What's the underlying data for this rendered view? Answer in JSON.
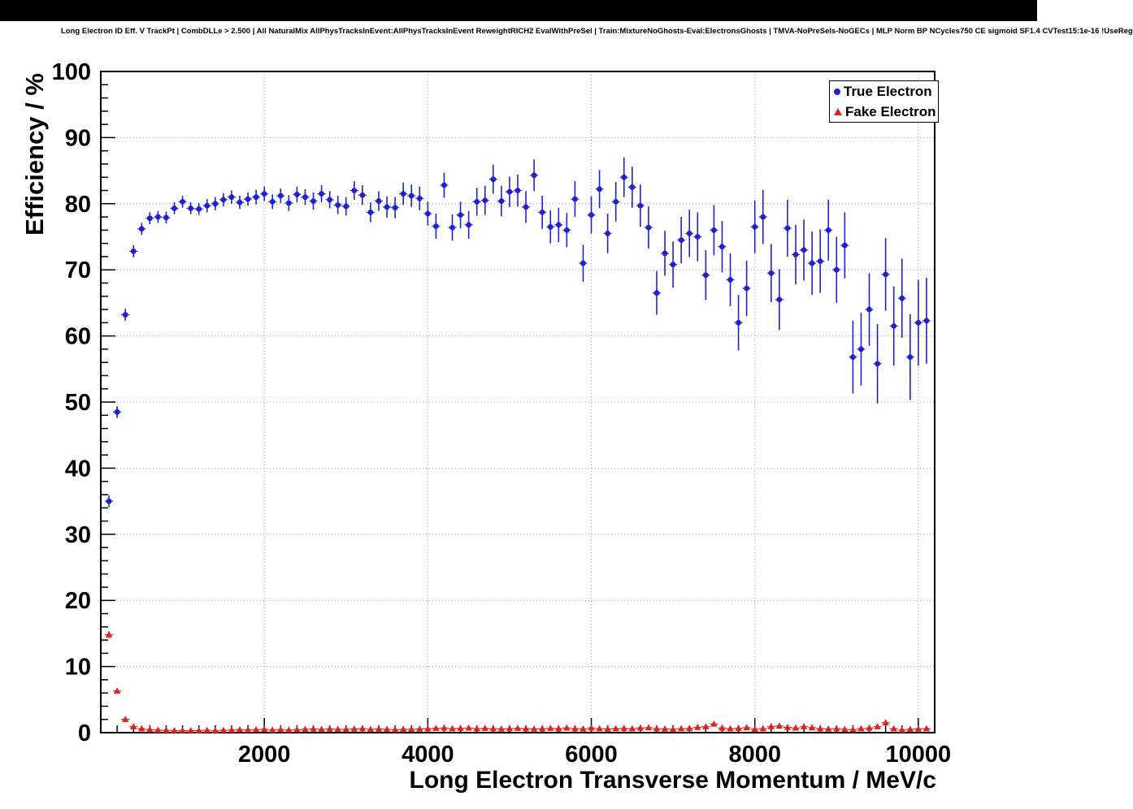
{
  "header": {
    "title": "Long Electron ID Eff. V TrackPt | CombDLLe > 2.500 | All NaturalMix AllPhysTracksInEvent:AllPhysTracksInEvent ReweightRICH2 EvalWithPreSel | Train:MixtureNoGhosts-Eval:ElectronsGhosts | TMVA-NoPreSels-NoGECs | MLP Norm BP NCycles750 CE sigmoid SF1.4 CVTest15:1e-16 !UseReg"
  },
  "chart_data": {
    "type": "scatter",
    "title": "",
    "xlabel": "Long Electron Transverse Momentum / MeV/c",
    "ylabel": "Efficiency / %",
    "xlim": [
      0,
      10200
    ],
    "ylim": [
      0,
      100
    ],
    "grid": "dotted",
    "legend_position": "top-right",
    "x_tick_values": [
      2000,
      4000,
      6000,
      8000,
      10000
    ],
    "x_tick_labels": [
      "2000",
      "4000",
      "6000",
      "8000",
      "10000"
    ],
    "y_tick_values": [
      0,
      10,
      20,
      30,
      40,
      50,
      60,
      70,
      80,
      90,
      100
    ],
    "y_tick_labels": [
      "0",
      "10",
      "20",
      "30",
      "40",
      "50",
      "60",
      "70",
      "80",
      "90",
      "100"
    ],
    "x_minor_step": 200,
    "y_minor_step": 2,
    "x_bin_half_width": 50,
    "series": [
      {
        "name": "True Electron",
        "color": "#2020cc",
        "marker": "circle",
        "points": [
          [
            100,
            35.0,
            0.9
          ],
          [
            200,
            48.5,
            0.9
          ],
          [
            300,
            63.2,
            0.9
          ],
          [
            400,
            72.8,
            0.9
          ],
          [
            500,
            76.2,
            0.9
          ],
          [
            600,
            77.8,
            0.9
          ],
          [
            700,
            78.0,
            0.9
          ],
          [
            800,
            77.9,
            0.9
          ],
          [
            900,
            79.3,
            0.9
          ],
          [
            1000,
            80.3,
            0.9
          ],
          [
            1100,
            79.3,
            0.9
          ],
          [
            1200,
            79.2,
            0.9
          ],
          [
            1300,
            79.7,
            1.0
          ],
          [
            1400,
            80.0,
            1.0
          ],
          [
            1500,
            80.6,
            1.0
          ],
          [
            1600,
            81.0,
            1.0
          ],
          [
            1700,
            80.2,
            1.0
          ],
          [
            1800,
            80.7,
            1.0
          ],
          [
            1900,
            81.0,
            1.1
          ],
          [
            2000,
            81.5,
            1.1
          ],
          [
            2100,
            80.3,
            1.1
          ],
          [
            2200,
            81.2,
            1.1
          ],
          [
            2300,
            80.1,
            1.2
          ],
          [
            2400,
            81.4,
            1.2
          ],
          [
            2500,
            81.0,
            1.2
          ],
          [
            2600,
            80.4,
            1.3
          ],
          [
            2700,
            81.5,
            1.3
          ],
          [
            2800,
            80.6,
            1.3
          ],
          [
            2900,
            79.8,
            1.4
          ],
          [
            3000,
            79.6,
            1.4
          ],
          [
            3100,
            82.0,
            1.4
          ],
          [
            3200,
            81.3,
            1.5
          ],
          [
            3300,
            78.7,
            1.5
          ],
          [
            3400,
            80.4,
            1.5
          ],
          [
            3500,
            79.5,
            1.6
          ],
          [
            3600,
            79.4,
            1.6
          ],
          [
            3700,
            81.5,
            1.7
          ],
          [
            3800,
            81.2,
            1.7
          ],
          [
            3900,
            80.8,
            1.8
          ],
          [
            4000,
            78.5,
            1.8
          ],
          [
            4100,
            76.6,
            1.9
          ],
          [
            4200,
            82.8,
            1.9
          ],
          [
            4300,
            76.4,
            2.0
          ],
          [
            4400,
            78.3,
            2.0
          ],
          [
            4500,
            76.8,
            2.1
          ],
          [
            4600,
            80.3,
            2.1
          ],
          [
            4700,
            80.5,
            2.2
          ],
          [
            4800,
            83.7,
            2.2
          ],
          [
            4900,
            80.4,
            2.3
          ],
          [
            5000,
            81.8,
            2.3
          ],
          [
            5100,
            82.0,
            2.4
          ],
          [
            5200,
            79.5,
            2.4
          ],
          [
            5300,
            84.3,
            2.4
          ],
          [
            5400,
            78.7,
            2.5
          ],
          [
            5500,
            76.5,
            2.5
          ],
          [
            5600,
            76.8,
            2.6
          ],
          [
            5700,
            76.0,
            2.6
          ],
          [
            5800,
            80.7,
            2.7
          ],
          [
            5900,
            71.0,
            2.8
          ],
          [
            6000,
            78.3,
            2.8
          ],
          [
            6100,
            82.2,
            2.9
          ],
          [
            6200,
            75.5,
            3.0
          ],
          [
            6300,
            80.3,
            3.0
          ],
          [
            6400,
            84.0,
            3.0
          ],
          [
            6500,
            82.5,
            3.1
          ],
          [
            6600,
            79.7,
            3.2
          ],
          [
            6700,
            76.4,
            3.2
          ],
          [
            6800,
            66.5,
            3.3
          ],
          [
            6900,
            72.5,
            3.4
          ],
          [
            7000,
            70.8,
            3.5
          ],
          [
            7100,
            74.5,
            3.5
          ],
          [
            7200,
            75.5,
            3.6
          ],
          [
            7300,
            75.0,
            3.7
          ],
          [
            7400,
            69.2,
            3.8
          ],
          [
            7500,
            76.0,
            3.8
          ],
          [
            7600,
            73.5,
            3.9
          ],
          [
            7700,
            68.5,
            4.0
          ],
          [
            7800,
            62.0,
            4.2
          ],
          [
            7900,
            67.2,
            4.2
          ],
          [
            8000,
            76.5,
            4.0
          ],
          [
            8100,
            78.0,
            4.1
          ],
          [
            8200,
            69.5,
            4.4
          ],
          [
            8300,
            65.5,
            4.6
          ],
          [
            8400,
            76.3,
            4.3
          ],
          [
            8500,
            72.3,
            4.5
          ],
          [
            8600,
            73.0,
            4.6
          ],
          [
            8700,
            71.0,
            4.8
          ],
          [
            8800,
            71.3,
            4.8
          ],
          [
            8900,
            76.0,
            4.6
          ],
          [
            9000,
            70.0,
            5.0
          ],
          [
            9100,
            73.7,
            5.0
          ],
          [
            9200,
            56.8,
            5.5
          ],
          [
            9300,
            58.0,
            5.5
          ],
          [
            9400,
            64.0,
            5.5
          ],
          [
            9500,
            55.8,
            6.0
          ],
          [
            9600,
            69.3,
            5.5
          ],
          [
            9700,
            61.5,
            6.0
          ],
          [
            9800,
            65.7,
            6.0
          ],
          [
            9900,
            56.8,
            6.5
          ],
          [
            10000,
            62.0,
            6.5
          ],
          [
            10100,
            62.3,
            6.5
          ]
        ]
      },
      {
        "name": "Fake Electron",
        "color": "#dd2222",
        "marker": "triangle-up",
        "points": [
          [
            100,
            14.8,
            0.5
          ],
          [
            200,
            6.3,
            0.4
          ],
          [
            300,
            2.0,
            0.3
          ],
          [
            400,
            0.9,
            0.25
          ],
          [
            500,
            0.6,
            0.2
          ],
          [
            600,
            0.45,
            0.2
          ],
          [
            700,
            0.4,
            0.2
          ],
          [
            800,
            0.35,
            0.2
          ],
          [
            900,
            0.3,
            0.2
          ],
          [
            1000,
            0.3,
            0.2
          ],
          [
            1100,
            0.3,
            0.2
          ],
          [
            1200,
            0.3,
            0.2
          ],
          [
            1300,
            0.35,
            0.2
          ],
          [
            1400,
            0.3,
            0.2
          ],
          [
            1500,
            0.35,
            0.2
          ],
          [
            1600,
            0.4,
            0.2
          ],
          [
            1700,
            0.45,
            0.2
          ],
          [
            1800,
            0.4,
            0.2
          ],
          [
            1900,
            0.45,
            0.2
          ],
          [
            2000,
            0.5,
            0.2
          ],
          [
            2100,
            0.4,
            0.2
          ],
          [
            2200,
            0.45,
            0.2
          ],
          [
            2300,
            0.4,
            0.2
          ],
          [
            2400,
            0.45,
            0.2
          ],
          [
            2500,
            0.5,
            0.2
          ],
          [
            2600,
            0.55,
            0.2
          ],
          [
            2700,
            0.5,
            0.2
          ],
          [
            2800,
            0.55,
            0.2
          ],
          [
            2900,
            0.5,
            0.2
          ],
          [
            3000,
            0.5,
            0.2
          ],
          [
            3100,
            0.55,
            0.2
          ],
          [
            3200,
            0.6,
            0.2
          ],
          [
            3300,
            0.5,
            0.2
          ],
          [
            3400,
            0.55,
            0.2
          ],
          [
            3500,
            0.5,
            0.2
          ],
          [
            3600,
            0.45,
            0.2
          ],
          [
            3700,
            0.5,
            0.2
          ],
          [
            3800,
            0.5,
            0.2
          ],
          [
            3900,
            0.55,
            0.2
          ],
          [
            4000,
            0.6,
            0.2
          ],
          [
            4100,
            0.65,
            0.2
          ],
          [
            4200,
            0.7,
            0.2
          ],
          [
            4300,
            0.6,
            0.2
          ],
          [
            4400,
            0.65,
            0.2
          ],
          [
            4500,
            0.7,
            0.2
          ],
          [
            4600,
            0.6,
            0.2
          ],
          [
            4700,
            0.65,
            0.2
          ],
          [
            4800,
            0.6,
            0.2
          ],
          [
            4900,
            0.55,
            0.2
          ],
          [
            5000,
            0.6,
            0.2
          ],
          [
            5100,
            0.65,
            0.2
          ],
          [
            5200,
            0.6,
            0.2
          ],
          [
            5300,
            0.55,
            0.2
          ],
          [
            5400,
            0.6,
            0.2
          ],
          [
            5500,
            0.65,
            0.2
          ],
          [
            5600,
            0.6,
            0.2
          ],
          [
            5700,
            0.7,
            0.2
          ],
          [
            5800,
            0.6,
            0.2
          ],
          [
            5900,
            0.55,
            0.2
          ],
          [
            6000,
            0.7,
            0.2
          ],
          [
            6100,
            0.6,
            0.2
          ],
          [
            6200,
            0.55,
            0.2
          ],
          [
            6300,
            0.6,
            0.2
          ],
          [
            6400,
            0.65,
            0.2
          ],
          [
            6500,
            0.6,
            0.2
          ],
          [
            6600,
            0.7,
            0.2
          ],
          [
            6700,
            0.75,
            0.2
          ],
          [
            6800,
            0.6,
            0.2
          ],
          [
            6900,
            0.55,
            0.2
          ],
          [
            7000,
            0.5,
            0.2
          ],
          [
            7100,
            0.6,
            0.2
          ],
          [
            7200,
            0.65,
            0.2
          ],
          [
            7300,
            0.8,
            0.25
          ],
          [
            7400,
            0.9,
            0.25
          ],
          [
            7500,
            1.3,
            0.3
          ],
          [
            7600,
            0.7,
            0.25
          ],
          [
            7700,
            0.6,
            0.2
          ],
          [
            7800,
            0.65,
            0.2
          ],
          [
            7900,
            0.75,
            0.25
          ],
          [
            8000,
            0.5,
            0.2
          ],
          [
            8100,
            0.6,
            0.2
          ],
          [
            8200,
            0.9,
            0.25
          ],
          [
            8300,
            1.0,
            0.3
          ],
          [
            8400,
            0.8,
            0.25
          ],
          [
            8500,
            0.7,
            0.25
          ],
          [
            8600,
            0.9,
            0.3
          ],
          [
            8700,
            0.75,
            0.25
          ],
          [
            8800,
            0.6,
            0.25
          ],
          [
            8900,
            0.55,
            0.25
          ],
          [
            9000,
            0.6,
            0.25
          ],
          [
            9100,
            0.5,
            0.25
          ],
          [
            9200,
            0.45,
            0.25
          ],
          [
            9300,
            0.6,
            0.25
          ],
          [
            9400,
            0.7,
            0.3
          ],
          [
            9500,
            0.9,
            0.3
          ],
          [
            9600,
            1.5,
            0.4
          ],
          [
            9700,
            0.6,
            0.3
          ],
          [
            9800,
            0.4,
            0.25
          ],
          [
            9900,
            0.5,
            0.3
          ],
          [
            10000,
            0.55,
            0.3
          ],
          [
            10100,
            0.6,
            0.3
          ]
        ]
      }
    ]
  }
}
